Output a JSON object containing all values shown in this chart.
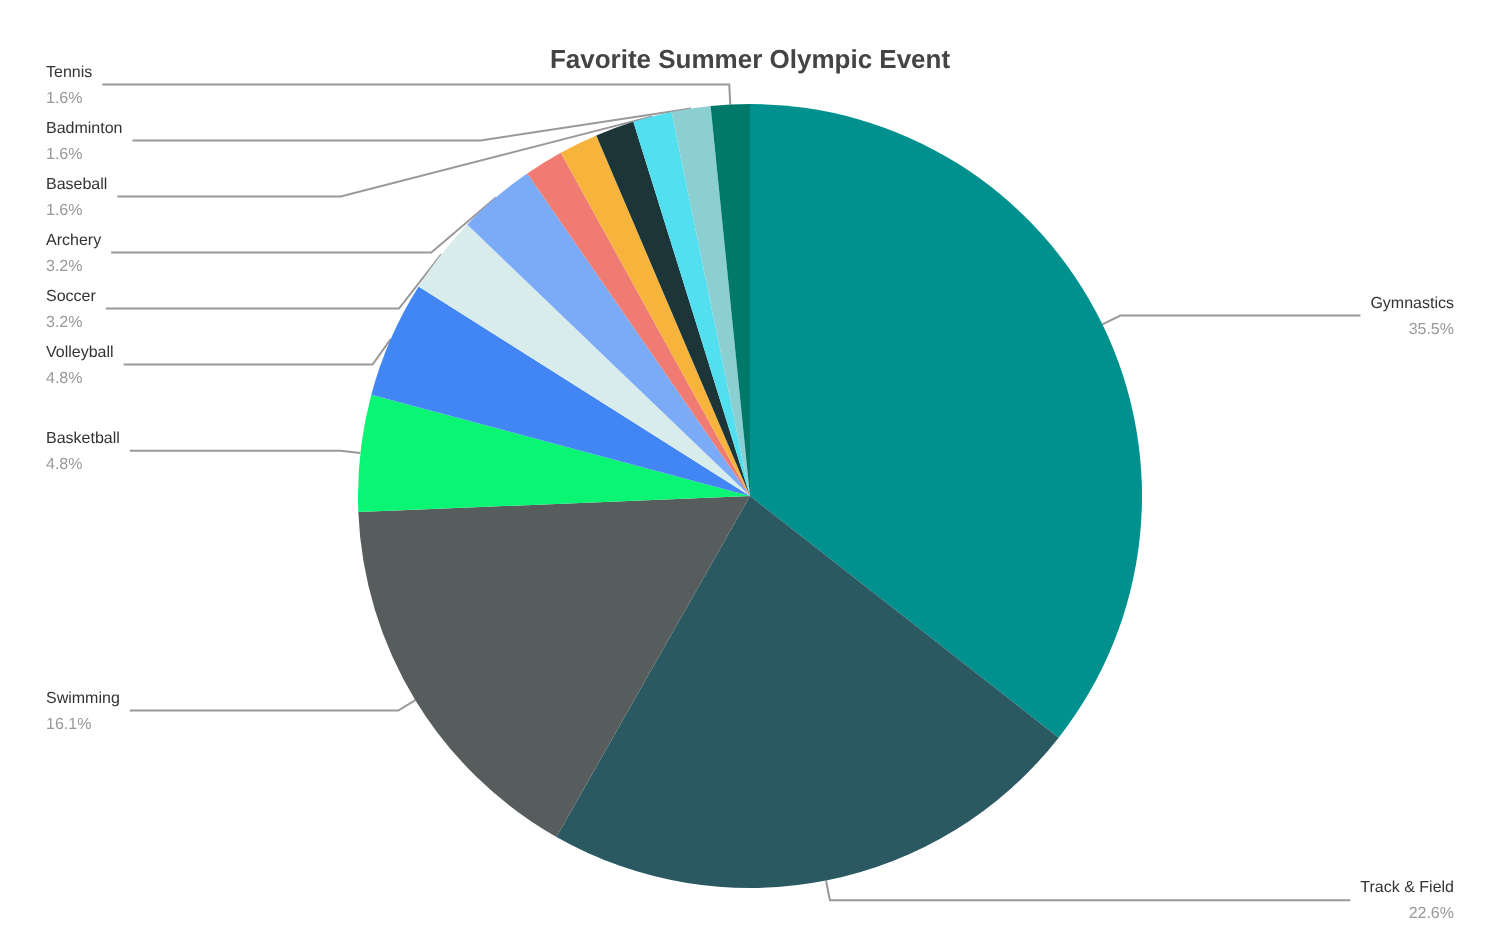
{
  "chart_data": {
    "type": "pie",
    "title": "Favorite Summer Olympic Event",
    "categories": [
      "Gymnastics",
      "Track & Field",
      "Swimming",
      "Basketball",
      "Volleyball",
      "Soccer",
      "Archery",
      null,
      null,
      null,
      "Baseball",
      "Badminton",
      "Tennis"
    ],
    "values": [
      35.5,
      22.6,
      16.1,
      4.8,
      4.8,
      3.2,
      3.2,
      1.6,
      1.6,
      1.6,
      1.6,
      1.6,
      1.6
    ],
    "value_labels": [
      "35.5%",
      "22.6%",
      "16.1%",
      "4.8%",
      "4.8%",
      "3.2%",
      "3.2%",
      null,
      null,
      null,
      "1.6%",
      "1.6%",
      "1.6%"
    ],
    "colors": [
      "#00918e",
      "#2a5961",
      "#575d5c",
      "#0bf574",
      "#4285f4",
      "#d9ecec",
      "#7baaf7",
      "#f07b72",
      "#f6b43c",
      "#1c3539",
      "#52e0f0",
      "#8bcfd3",
      "#00786a"
    ],
    "legend": false
  }
}
